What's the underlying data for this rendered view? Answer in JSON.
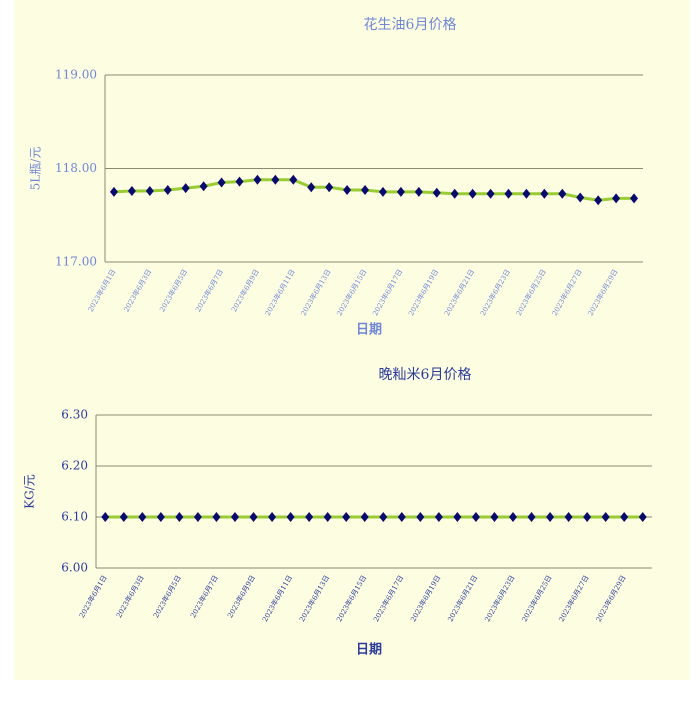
{
  "chart_data": [
    {
      "type": "line",
      "title": "花生油6月价格",
      "ylabel": "5L瓶/元",
      "xlabel": "日期",
      "color": "#99cc33",
      "marker_color": "#0a0a6e",
      "text_color": "#6f86d6",
      "grid": true,
      "categories": [
        "2023年6月1日",
        null,
        "2023年6月3日",
        null,
        "2023年6月5日",
        null,
        "2023年6月7日",
        null,
        "2023年6月9日",
        null,
        "2023年6月11日",
        null,
        "2023年6月13日",
        null,
        "2023年6月15日",
        null,
        "2023年6月17日",
        null,
        "2023年6月19日",
        null,
        "2023年6月21日",
        null,
        "2023年6月23日",
        null,
        "2023年6月25日",
        null,
        "2023年6月27日",
        null,
        "2023年6月29日",
        null
      ],
      "values": [
        117.75,
        117.76,
        117.76,
        117.77,
        117.79,
        117.81,
        117.85,
        117.86,
        117.88,
        117.88,
        117.88,
        117.8,
        117.8,
        117.77,
        117.77,
        117.75,
        117.75,
        117.75,
        117.74,
        117.73,
        117.73,
        117.73,
        117.73,
        117.73,
        117.73,
        117.73,
        117.69,
        117.66,
        117.68,
        117.68
      ],
      "ylim": [
        117,
        119
      ],
      "yticks": [
        {
          "value": 117,
          "label": "117.00"
        },
        {
          "value": 118,
          "label": "118.00"
        },
        {
          "value": 119,
          "label": "119.00"
        }
      ]
    },
    {
      "type": "line",
      "title": "晚籼米6月价格",
      "ylabel": "KG/元",
      "xlabel": "日期",
      "color": "#99cc33",
      "marker_color": "#0a0a6e",
      "text_color": "#2a3a9a",
      "grid": true,
      "categories": [
        "2023年6月1日",
        null,
        "2023年6月3日",
        null,
        "2023年6月5日",
        null,
        "2023年6月7日",
        null,
        "2023年6月9日",
        null,
        "2023年6月11日",
        null,
        "2023年6月13日",
        null,
        "2023年6月15日",
        null,
        "2023年6月17日",
        null,
        "2023年6月19日",
        null,
        "2023年6月21日",
        null,
        "2023年6月23日",
        null,
        "2023年6月25日",
        null,
        "2023年6月27日",
        null,
        "2023年6月29日",
        null
      ],
      "values": [
        6.1,
        6.1,
        6.1,
        6.1,
        6.1,
        6.1,
        6.1,
        6.1,
        6.1,
        6.1,
        6.1,
        6.1,
        6.1,
        6.1,
        6.1,
        6.1,
        6.1,
        6.1,
        6.1,
        6.1,
        6.1,
        6.1,
        6.1,
        6.1,
        6.1,
        6.1,
        6.1,
        6.1,
        6.1,
        6.1
      ],
      "ylim": [
        6.0,
        6.3
      ],
      "yticks": [
        {
          "value": 6.0,
          "label": "6.00"
        },
        {
          "value": 6.1,
          "label": "6.10"
        },
        {
          "value": 6.2,
          "label": "6.20"
        },
        {
          "value": 6.3,
          "label": "6.30"
        }
      ]
    }
  ]
}
